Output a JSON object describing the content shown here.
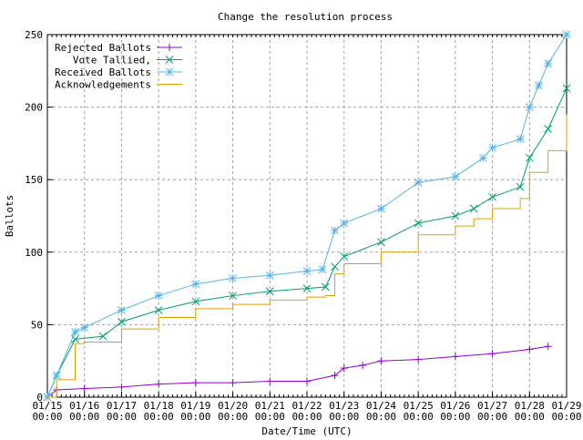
{
  "chart_data": {
    "type": "line",
    "title": "Change the resolution process",
    "xlabel": "Date/Time (UTC)",
    "ylabel": "Ballots",
    "xlim": [
      "01/15 00:00",
      "01/29 00:00"
    ],
    "ylim": [
      0,
      250
    ],
    "yticks": [
      0,
      50,
      100,
      150,
      200,
      250
    ],
    "xticks": [
      "01/15 00:00",
      "01/16 00:00",
      "01/17 00:00",
      "01/18 00:00",
      "01/19 00:00",
      "01/20 00:00",
      "01/21 00:00",
      "01/22 00:00",
      "01/23 00:00",
      "01/24 00:00",
      "01/25 00:00",
      "01/26 00:00",
      "01/27 00:00",
      "01/28 00:00",
      "01/29 00:00"
    ],
    "grid": true,
    "legend_position": "top-left",
    "series": [
      {
        "name": "Rejected Ballots",
        "color": "#9400d3",
        "marker": "plus",
        "step": false,
        "x": [
          "01/15 00:00",
          "01/15 06:00",
          "01/16 00:00",
          "01/17 00:00",
          "01/18 00:00",
          "01/19 00:00",
          "01/20 00:00",
          "01/21 00:00",
          "01/22 00:00",
          "01/22 18:00",
          "01/23 00:00",
          "01/23 12:00",
          "01/24 00:00",
          "01/25 00:00",
          "01/26 00:00",
          "01/27 00:00",
          "01/28 00:00",
          "01/28 12:00"
        ],
        "y": [
          0,
          5,
          6,
          7,
          9,
          10,
          10,
          11,
          11,
          15,
          20,
          22,
          25,
          26,
          28,
          30,
          33,
          35
        ]
      },
      {
        "name": "Vote Tallied,",
        "color": "#009e73",
        "marker": "x",
        "step": false,
        "x": [
          "01/15 00:00",
          "01/15 06:00",
          "01/15 18:00",
          "01/16 12:00",
          "01/17 00:00",
          "01/18 00:00",
          "01/19 00:00",
          "01/20 00:00",
          "01/21 00:00",
          "01/22 00:00",
          "01/22 12:00",
          "01/22 18:00",
          "01/23 00:00",
          "01/24 00:00",
          "01/25 00:00",
          "01/26 00:00",
          "01/26 12:00",
          "01/27 00:00",
          "01/27 18:00",
          "01/28 00:00",
          "01/28 12:00",
          "01/29 00:00"
        ],
        "y": [
          0,
          15,
          40,
          42,
          52,
          60,
          66,
          70,
          73,
          75,
          76,
          90,
          97,
          107,
          120,
          125,
          130,
          138,
          145,
          165,
          185,
          213
        ]
      },
      {
        "name": "Received Ballots",
        "color": "#56b4e9",
        "marker": "star",
        "step": false,
        "x": [
          "01/15 00:00",
          "01/15 06:00",
          "01/15 18:00",
          "01/16 00:00",
          "01/17 00:00",
          "01/18 00:00",
          "01/19 00:00",
          "01/20 00:00",
          "01/21 00:00",
          "01/22 00:00",
          "01/22 10:00",
          "01/22 18:00",
          "01/23 00:00",
          "01/24 00:00",
          "01/25 00:00",
          "01/26 00:00",
          "01/26 18:00",
          "01/27 00:00",
          "01/27 18:00",
          "01/28 00:00",
          "01/28 06:00",
          "01/28 12:00",
          "01/29 00:00"
        ],
        "y": [
          0,
          15,
          45,
          48,
          60,
          70,
          78,
          82,
          84,
          87,
          88,
          115,
          120,
          130,
          148,
          152,
          165,
          172,
          178,
          200,
          215,
          230,
          250
        ]
      },
      {
        "name": "Acknowledgements",
        "color": "#e69f00",
        "marker": "none",
        "step": true,
        "x": [
          "01/15 00:00",
          "01/15 06:00",
          "01/15 18:00",
          "01/16 00:00",
          "01/17 00:00",
          "01/18 00:00",
          "01/19 00:00",
          "01/20 00:00",
          "01/21 00:00",
          "01/22 00:00",
          "01/22 12:00",
          "01/22 18:00",
          "01/23 00:00",
          "01/24 00:00",
          "01/25 00:00",
          "01/26 00:00",
          "01/26 12:00",
          "01/27 00:00",
          "01/27 18:00",
          "01/28 00:00",
          "01/28 12:00",
          "01/29 00:00"
        ],
        "y": [
          0,
          12,
          37,
          38,
          47,
          55,
          61,
          64,
          67,
          69,
          70,
          85,
          92,
          100,
          112,
          118,
          123,
          130,
          137,
          155,
          170,
          195
        ]
      }
    ]
  }
}
